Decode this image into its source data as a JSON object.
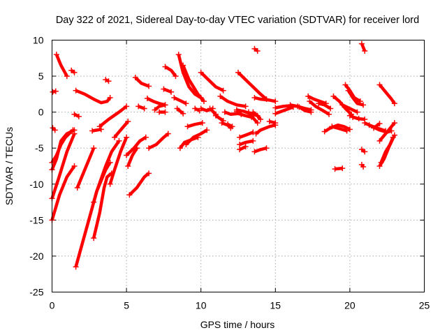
{
  "chart_data": {
    "type": "scatter",
    "title": "Day 322 of 2021, Sidereal Day-to-day VTEC variation (SDTVAR) for receiver lord",
    "xlabel": "GPS time / hours",
    "ylabel": "SDTVAR / TECUs",
    "xlim": [
      0,
      25
    ],
    "ylim": [
      -25,
      10
    ],
    "xticks": [
      0,
      5,
      10,
      15,
      20,
      25
    ],
    "yticks": [
      -25,
      -20,
      -15,
      -10,
      -5,
      0,
      5,
      10
    ],
    "grid": true,
    "series_color": "#ff0000",
    "marker": "plus",
    "segments": [
      [
        [
          0.05,
          2.8
        ],
        [
          0.25,
          2.9
        ]
      ],
      [
        [
          0.05,
          -2.2
        ],
        [
          0.2,
          -2.5
        ]
      ],
      [
        [
          0.0,
          -7.0
        ],
        [
          0.3,
          -6.0
        ],
        [
          0.6,
          -4.5
        ],
        [
          0.9,
          -3.5
        ],
        [
          1.4,
          -2.5
        ]
      ],
      [
        [
          0.0,
          -8.0
        ],
        [
          0.3,
          -6.5
        ],
        [
          0.6,
          -4.0
        ],
        [
          1.0,
          -3.0
        ],
        [
          1.5,
          -2.5
        ]
      ],
      [
        [
          0.0,
          -12.0
        ],
        [
          0.4,
          -9.5
        ],
        [
          0.7,
          -7.5
        ],
        [
          1.0,
          -5.5
        ],
        [
          1.3,
          -4.0
        ],
        [
          1.5,
          -3.0
        ]
      ],
      [
        [
          0.0,
          -15.0
        ],
        [
          0.5,
          -11.5
        ],
        [
          1.0,
          -9.0
        ],
        [
          1.5,
          -7.5
        ]
      ],
      [
        [
          0.3,
          8.0
        ],
        [
          0.6,
          6.5
        ],
        [
          1.0,
          5.0
        ]
      ],
      [
        [
          1.3,
          5.8
        ],
        [
          1.5,
          5.5
        ]
      ],
      [
        [
          1.5,
          -0.3
        ],
        [
          1.8,
          -0.6
        ]
      ],
      [
        [
          1.6,
          3.0
        ],
        [
          2.2,
          2.5
        ],
        [
          2.8,
          1.8
        ],
        [
          3.3,
          1.3
        ],
        [
          3.7,
          1.5
        ],
        [
          3.9,
          2.0
        ]
      ],
      [
        [
          2.7,
          -2.6
        ],
        [
          3.3,
          -2.4
        ]
      ],
      [
        [
          3.6,
          4.5
        ],
        [
          3.8,
          4.3
        ]
      ],
      [
        [
          1.6,
          -21.5
        ],
        [
          2.0,
          -18.5
        ],
        [
          2.4,
          -15.5
        ],
        [
          3.0,
          -11.0
        ],
        [
          3.6,
          -7.5
        ],
        [
          4.0,
          -5.5
        ],
        [
          4.5,
          -4.0
        ]
      ],
      [
        [
          1.7,
          -10.5
        ],
        [
          2.0,
          -9.0
        ],
        [
          2.4,
          -7.0
        ],
        [
          2.8,
          -5.0
        ]
      ],
      [
        [
          2.8,
          -17.5
        ],
        [
          3.2,
          -14.0
        ],
        [
          3.5,
          -10.5
        ],
        [
          3.7,
          -9.0
        ],
        [
          4.0,
          -8.5
        ]
      ],
      [
        [
          2.8,
          -12.5
        ],
        [
          3.0,
          -11.0
        ],
        [
          3.3,
          -9.5
        ],
        [
          3.6,
          -8.0
        ],
        [
          3.9,
          -7.0
        ]
      ],
      [
        [
          3.2,
          -2.0
        ],
        [
          3.8,
          -1.0
        ],
        [
          4.5,
          0.0
        ],
        [
          5.0,
          0.8
        ]
      ],
      [
        [
          3.9,
          -10.0
        ],
        [
          4.2,
          -8.0
        ],
        [
          4.6,
          -5.5
        ],
        [
          5.0,
          -3.5
        ]
      ],
      [
        [
          4.2,
          -3.5
        ],
        [
          4.6,
          -2.5
        ],
        [
          5.1,
          -1.3
        ]
      ],
      [
        [
          5.0,
          -6.0
        ],
        [
          5.5,
          -5.0
        ],
        [
          5.9,
          -4.0
        ],
        [
          6.3,
          -3.5
        ]
      ],
      [
        [
          5.1,
          -7.5
        ],
        [
          5.4,
          -6.0
        ],
        [
          5.7,
          -5.0
        ]
      ],
      [
        [
          5.2,
          -11.5
        ],
        [
          5.7,
          -10.5
        ],
        [
          6.2,
          -9.0
        ],
        [
          6.5,
          -8.5
        ]
      ],
      [
        [
          5.6,
          4.8
        ],
        [
          6.0,
          4.0
        ],
        [
          6.5,
          3.6
        ]
      ],
      [
        [
          5.8,
          0.8
        ],
        [
          6.2,
          0.5
        ]
      ],
      [
        [
          6.4,
          1.9
        ],
        [
          6.8,
          1.5
        ],
        [
          7.2,
          1.2
        ],
        [
          7.6,
          1.0
        ]
      ],
      [
        [
          6.5,
          -5.0
        ],
        [
          7.0,
          -4.5
        ],
        [
          7.5,
          -3.5
        ],
        [
          7.8,
          -3.0
        ]
      ],
      [
        [
          6.9,
          0.3
        ],
        [
          7.2,
          0.8
        ],
        [
          7.6,
          1.0
        ]
      ],
      [
        [
          7.2,
          0.0
        ],
        [
          7.6,
          0.0
        ]
      ],
      [
        [
          7.5,
          3.2
        ],
        [
          8.0,
          2.8
        ]
      ],
      [
        [
          7.6,
          6.3
        ],
        [
          8.0,
          5.8
        ],
        [
          8.3,
          5.0
        ]
      ],
      [
        [
          8.2,
          2.0
        ],
        [
          8.6,
          1.6
        ],
        [
          9.0,
          1.2
        ]
      ],
      [
        [
          8.4,
          0.5
        ],
        [
          8.8,
          -0.2
        ]
      ],
      [
        [
          8.5,
          8.0
        ],
        [
          8.8,
          5.5
        ],
        [
          9.2,
          3.5
        ],
        [
          9.6,
          2.5
        ],
        [
          10.0,
          2.0
        ]
      ],
      [
        [
          8.8,
          6.5
        ],
        [
          9.2,
          4.5
        ],
        [
          9.8,
          2.5
        ],
        [
          10.2,
          1.5
        ]
      ],
      [
        [
          8.6,
          -5.0
        ],
        [
          8.9,
          -4.2
        ],
        [
          9.4,
          -3.8
        ],
        [
          9.8,
          -3.5
        ]
      ],
      [
        [
          9.0,
          -4.5
        ],
        [
          9.5,
          -3.5
        ],
        [
          10.0,
          -3.0
        ],
        [
          10.4,
          -2.5
        ]
      ],
      [
        [
          9.1,
          -2.0
        ],
        [
          9.6,
          -1.7
        ],
        [
          10.1,
          -1.5
        ]
      ],
      [
        [
          9.6,
          0.5
        ],
        [
          9.9,
          0.2
        ]
      ],
      [
        [
          10.0,
          5.5
        ],
        [
          10.5,
          4.5
        ],
        [
          11.0,
          3.5
        ],
        [
          11.5,
          3.0
        ]
      ],
      [
        [
          10.0,
          0.5
        ],
        [
          10.4,
          0.2
        ],
        [
          10.8,
          0.5
        ]
      ],
      [
        [
          10.6,
          0.5
        ],
        [
          11.0,
          -0.3
        ]
      ],
      [
        [
          11.0,
          -0.5
        ],
        [
          11.5,
          -1.2
        ]
      ],
      [
        [
          11.4,
          -1.5
        ],
        [
          11.8,
          -1.8
        ],
        [
          12.0,
          -2.2
        ]
      ],
      [
        [
          11.8,
          -1.7
        ],
        [
          12.1,
          -2.0
        ]
      ],
      [
        [
          11.3,
          2.2
        ],
        [
          11.8,
          1.5
        ],
        [
          12.4,
          1.0
        ],
        [
          13.0,
          0.8
        ]
      ],
      [
        [
          11.6,
          0.0
        ],
        [
          12.0,
          -0.3
        ],
        [
          12.5,
          -0.2
        ],
        [
          13.0,
          -0.5
        ],
        [
          13.4,
          -0.7
        ]
      ],
      [
        [
          12.4,
          0.3
        ],
        [
          12.9,
          0.1
        ],
        [
          13.3,
          -0.2
        ],
        [
          13.8,
          -0.5
        ]
      ],
      [
        [
          12.4,
          0.1
        ],
        [
          12.7,
          -0.3
        ]
      ],
      [
        [
          12.5,
          5.5
        ],
        [
          13.0,
          4.5
        ],
        [
          13.5,
          3.5
        ],
        [
          14.0,
          2.5
        ],
        [
          14.4,
          1.8
        ]
      ],
      [
        [
          12.6,
          -3.5
        ],
        [
          13.0,
          -3.2
        ],
        [
          13.5,
          -2.8
        ]
      ],
      [
        [
          12.6,
          -4.5
        ],
        [
          13.0,
          -4.2
        ],
        [
          13.5,
          -4.0
        ]
      ],
      [
        [
          12.6,
          -5.2
        ],
        [
          13.0,
          -4.8
        ]
      ],
      [
        [
          13.2,
          0.0
        ],
        [
          13.5,
          -0.8
        ],
        [
          13.8,
          -1.5
        ]
      ],
      [
        [
          13.6,
          8.8
        ],
        [
          13.8,
          8.5
        ]
      ],
      [
        [
          13.5,
          0.0
        ],
        [
          13.8,
          -0.5
        ],
        [
          14.0,
          -1.0
        ]
      ],
      [
        [
          13.6,
          2.0
        ],
        [
          14.0,
          1.8
        ],
        [
          14.5,
          1.7
        ],
        [
          15.0,
          1.5
        ]
      ],
      [
        [
          13.6,
          -5.5
        ],
        [
          14.0,
          -5.2
        ],
        [
          14.4,
          -5.0
        ]
      ],
      [
        [
          13.7,
          -3.0
        ],
        [
          14.0,
          -2.5
        ],
        [
          14.6,
          -2.0
        ],
        [
          15.0,
          -1.8
        ]
      ],
      [
        [
          14.6,
          -1.3
        ],
        [
          15.0,
          -1.5
        ]
      ],
      [
        [
          15.0,
          0.6
        ],
        [
          15.5,
          0.8
        ],
        [
          16.0,
          0.9
        ],
        [
          16.5,
          0.8
        ]
      ],
      [
        [
          15.0,
          -0.2
        ],
        [
          15.4,
          0.1
        ],
        [
          15.8,
          0.4
        ],
        [
          16.2,
          0.7
        ]
      ],
      [
        [
          16.0,
          1.0
        ],
        [
          16.5,
          0.8
        ],
        [
          17.0,
          0.5
        ],
        [
          17.4,
          0.3
        ]
      ],
      [
        [
          16.6,
          0.7
        ],
        [
          17.0,
          0.2
        ],
        [
          17.4,
          0.0
        ]
      ],
      [
        [
          17.2,
          2.2
        ],
        [
          17.6,
          1.8
        ],
        [
          18.0,
          1.5
        ],
        [
          18.4,
          1.2
        ]
      ],
      [
        [
          17.3,
          1.5
        ],
        [
          17.7,
          0.8
        ],
        [
          18.2,
          0.2
        ],
        [
          18.6,
          -0.3
        ]
      ],
      [
        [
          17.9,
          1.2
        ],
        [
          18.3,
          1.0
        ],
        [
          18.7,
          0.5
        ]
      ],
      [
        [
          18.3,
          -2.7
        ],
        [
          18.7,
          -2.2
        ],
        [
          19.2,
          -1.8
        ],
        [
          19.6,
          -2.0
        ],
        [
          20.0,
          -2.4
        ]
      ],
      [
        [
          18.8,
          -2.0
        ],
        [
          19.3,
          -2.3
        ],
        [
          19.8,
          -2.6
        ]
      ],
      [
        [
          18.9,
          2.2
        ],
        [
          19.3,
          1.5
        ],
        [
          19.7,
          0.5
        ],
        [
          20.1,
          -0.3
        ]
      ],
      [
        [
          19.0,
          -7.9
        ],
        [
          19.5,
          -7.8
        ]
      ],
      [
        [
          19.5,
          1.0
        ],
        [
          20.0,
          0.5
        ],
        [
          20.5,
          0.0
        ]
      ],
      [
        [
          19.7,
          3.8
        ],
        [
          20.0,
          3.0
        ],
        [
          20.3,
          2.0
        ],
        [
          20.7,
          1.5
        ]
      ],
      [
        [
          19.9,
          3.0
        ],
        [
          20.2,
          2.0
        ],
        [
          20.5,
          1.2
        ],
        [
          20.9,
          1.0
        ]
      ],
      [
        [
          20.0,
          -0.5
        ],
        [
          20.5,
          -0.9
        ],
        [
          21.0,
          -1.0
        ]
      ],
      [
        [
          20.2,
          -0.7
        ],
        [
          20.6,
          -0.9
        ]
      ],
      [
        [
          20.8,
          9.5
        ],
        [
          21.0,
          8.5
        ]
      ],
      [
        [
          20.8,
          -5.2
        ],
        [
          21.0,
          -5.5
        ]
      ],
      [
        [
          20.8,
          -7.3
        ],
        [
          20.9,
          -7.6
        ]
      ],
      [
        [
          21.0,
          -1.5
        ],
        [
          21.5,
          -2.0
        ],
        [
          22.0,
          -2.5
        ],
        [
          22.5,
          -2.8
        ],
        [
          22.8,
          -2.6
        ]
      ],
      [
        [
          21.6,
          -2.2
        ],
        [
          22.0,
          -1.6
        ]
      ],
      [
        [
          21.3,
          -1.8
        ],
        [
          21.8,
          -2.2
        ],
        [
          22.4,
          -2.6
        ]
      ],
      [
        [
          22.0,
          3.8
        ],
        [
          22.4,
          2.8
        ],
        [
          22.8,
          1.8
        ],
        [
          23.0,
          1.2
        ]
      ],
      [
        [
          22.0,
          -7.5
        ],
        [
          22.3,
          -6.5
        ],
        [
          22.6,
          -5.0
        ],
        [
          22.9,
          -3.5
        ]
      ],
      [
        [
          22.1,
          -7.0
        ],
        [
          22.4,
          -5.5
        ],
        [
          22.7,
          -4.5
        ],
        [
          23.0,
          -3.2
        ]
      ],
      [
        [
          22.0,
          -4.0
        ],
        [
          22.4,
          -3.0
        ],
        [
          22.8,
          -2.0
        ],
        [
          23.0,
          -1.5
        ]
      ]
    ]
  }
}
